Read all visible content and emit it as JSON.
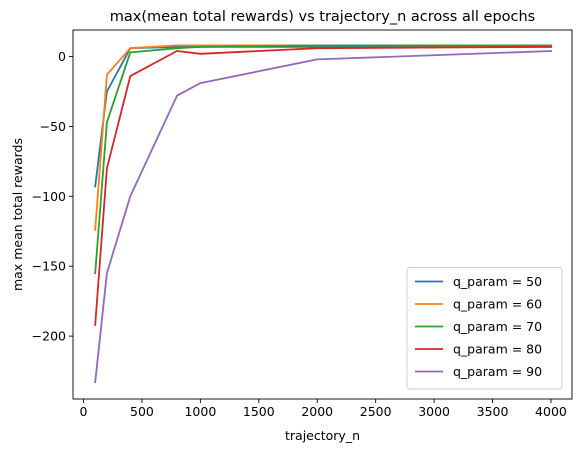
{
  "chart_data": {
    "type": "line",
    "title": "max(mean total rewards) vs trajectory_n across all epochs",
    "xlabel": "trajectory_n",
    "ylabel": "max mean total rewards",
    "xlim": [
      -90,
      4180
    ],
    "ylim": [
      -245,
      19
    ],
    "xticks": [
      0,
      500,
      1000,
      1500,
      2000,
      2500,
      3000,
      3500,
      4000
    ],
    "xtick_labels": [
      "0",
      "500",
      "1000",
      "1500",
      "2000",
      "2500",
      "3000",
      "3500",
      "4000"
    ],
    "yticks": [
      0,
      -50,
      -100,
      -150,
      -200
    ],
    "ytick_labels": [
      "0",
      "−50",
      "−100",
      "−150",
      "−200"
    ],
    "grid": false,
    "legend_position": "bottom-right",
    "x": [
      100,
      200,
      400,
      800,
      1000,
      2000,
      4000
    ],
    "series": [
      {
        "name": "q_param = 50",
        "color": "#1f77b4",
        "values": [
          -93,
          -25,
          6,
          7,
          7,
          7,
          7
        ]
      },
      {
        "name": "q_param = 60",
        "color": "#ff7f0e",
        "values": [
          -124,
          -13,
          6,
          8,
          8,
          8,
          8
        ]
      },
      {
        "name": "q_param = 70",
        "color": "#2ca02c",
        "values": [
          -155,
          -47,
          3,
          6,
          7,
          8,
          8
        ]
      },
      {
        "name": "q_param = 80",
        "color": "#d62728",
        "values": [
          -192,
          -80,
          -14,
          4,
          2,
          6,
          7
        ]
      },
      {
        "name": "q_param = 90",
        "color": "#9467bd",
        "values": [
          -233,
          -155,
          -100,
          -28,
          -19,
          -2,
          4
        ]
      }
    ]
  }
}
